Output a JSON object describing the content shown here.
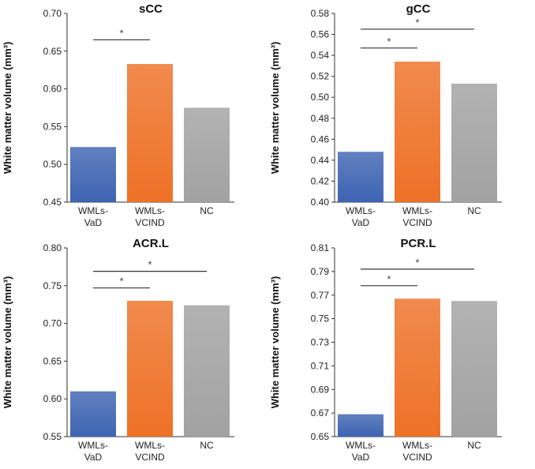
{
  "colors": {
    "WMLs-VaD": "#3e64b2",
    "WMLs-VCIND": "#ee7127",
    "NC": "#a2a2a2"
  },
  "chart_data": [
    {
      "type": "bar",
      "title": "sCC",
      "ylabel": "White matter volume (mm³)",
      "xlabel": "",
      "categories": [
        {
          "id": "WMLs-VaD",
          "lines": [
            "WMLs-",
            "VaD"
          ]
        },
        {
          "id": "WMLs-VCIND",
          "lines": [
            "WMLs-",
            "VCIND"
          ]
        },
        {
          "id": "NC",
          "lines": [
            "NC"
          ]
        }
      ],
      "values": [
        0.523,
        0.633,
        0.575
      ],
      "ylim": [
        0.45,
        0.7
      ],
      "yticks": [
        "0.45",
        "0.50",
        "0.55",
        "0.60",
        "0.65",
        "0.70"
      ],
      "significance": [
        {
          "from": 0,
          "to": 1,
          "y": 0.665,
          "label": "*"
        }
      ]
    },
    {
      "type": "bar",
      "title": "gCC",
      "ylabel": "White matter volume (mm³)",
      "xlabel": "",
      "categories": [
        {
          "id": "WMLs-VaD",
          "lines": [
            "WMLs-",
            "VaD"
          ]
        },
        {
          "id": "WMLs-VCIND",
          "lines": [
            "WMLs-",
            "VCIND"
          ]
        },
        {
          "id": "NC",
          "lines": [
            "NC"
          ]
        }
      ],
      "values": [
        0.448,
        0.534,
        0.513
      ],
      "ylim": [
        0.4,
        0.58
      ],
      "yticks": [
        "0.40",
        "0.42",
        "0.44",
        "0.46",
        "0.48",
        "0.50",
        "0.52",
        "0.54",
        "0.56",
        "0.58"
      ],
      "significance": [
        {
          "from": 0,
          "to": 1,
          "y": 0.547,
          "label": "*"
        },
        {
          "from": 0,
          "to": 2,
          "y": 0.565,
          "label": "*"
        }
      ]
    },
    {
      "type": "bar",
      "title": "ACR.L",
      "ylabel": "White matter volume (mm³)",
      "xlabel": "",
      "categories": [
        {
          "id": "WMLs-VaD",
          "lines": [
            "WMLs-",
            "VaD"
          ]
        },
        {
          "id": "WMLs-VCIND",
          "lines": [
            "WMLs-",
            "VCIND"
          ]
        },
        {
          "id": "NC",
          "lines": [
            "NC"
          ]
        }
      ],
      "values": [
        0.61,
        0.73,
        0.724
      ],
      "ylim": [
        0.55,
        0.8
      ],
      "yticks": [
        "0.55",
        "0.60",
        "0.65",
        "0.70",
        "0.75",
        "0.80"
      ],
      "significance": [
        {
          "from": 0,
          "to": 1,
          "y": 0.747,
          "label": "*"
        },
        {
          "from": 0,
          "to": 2,
          "y": 0.769,
          "label": "*"
        }
      ]
    },
    {
      "type": "bar",
      "title": "PCR.L",
      "ylabel": "White matter volume (mm³)",
      "xlabel": "",
      "categories": [
        {
          "id": "WMLs-VaD",
          "lines": [
            "WMLs-",
            "VaD"
          ]
        },
        {
          "id": "WMLs-VCIND",
          "lines": [
            "WMLs-",
            "VCIND"
          ]
        },
        {
          "id": "NC",
          "lines": [
            "NC"
          ]
        }
      ],
      "values": [
        0.669,
        0.767,
        0.765
      ],
      "ylim": [
        0.65,
        0.81
      ],
      "yticks": [
        "0.65",
        "0.67",
        "0.69",
        "0.71",
        "0.73",
        "0.75",
        "0.77",
        "0.79",
        "0.81"
      ],
      "significance": [
        {
          "from": 0,
          "to": 1,
          "y": 0.778,
          "label": "*"
        },
        {
          "from": 0,
          "to": 2,
          "y": 0.792,
          "label": "*"
        }
      ]
    }
  ]
}
